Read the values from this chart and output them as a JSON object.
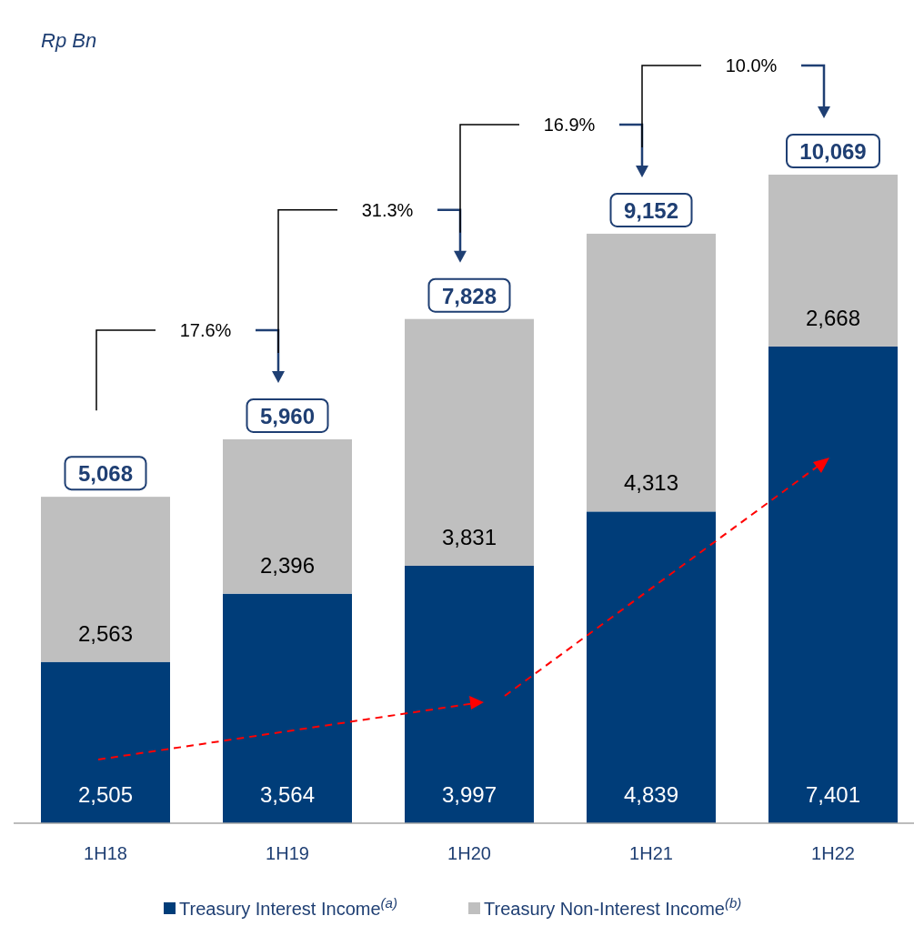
{
  "chart_data": {
    "type": "bar",
    "stacked": true,
    "title": "Rp Bn",
    "categories": [
      "1H18",
      "1H19",
      "1H20",
      "1H21",
      "1H22"
    ],
    "series": [
      {
        "name": "Treasury Interest Income$^{(a)}$",
        "color": "#003d79",
        "values": [
          2505,
          3564,
          3997,
          4839,
          7401
        ],
        "value_labels": [
          "2,505",
          "3,564",
          "3,997",
          "4,839",
          "7,401"
        ]
      },
      {
        "name": "Treasury Non-Interest Income$^{(b)}$",
        "color": "#bfbfbf",
        "values": [
          2563,
          2396,
          3831,
          4313,
          2668
        ],
        "value_labels": [
          "2,563",
          "2,396",
          "3,831",
          "4,313",
          "2,668"
        ]
      }
    ],
    "totals": [
      "5,068",
      "5,960",
      "7,828",
      "9,152",
      "10,069"
    ],
    "annotations": [
      "17.6%",
      "31.3%",
      "16.9%",
      "10.0%"
    ],
    "legend": "bottom"
  }
}
